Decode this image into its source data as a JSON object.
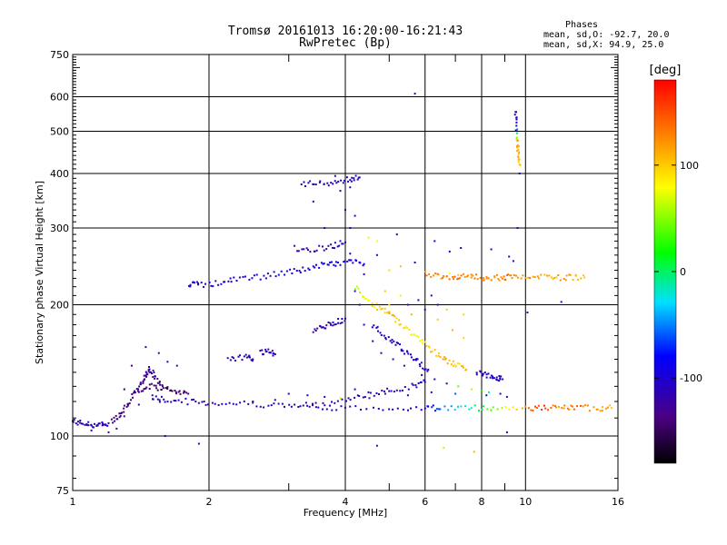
{
  "chart_data": {
    "type": "scatter",
    "title": "Tromsø 20161013 16:20:00-16:21:43",
    "subtitle": "RwPretec (Bp)",
    "xlabel": "Frequency [MHz]",
    "ylabel": "Stationary phase Virtual Height [km]",
    "x_scale": "log",
    "y_scale": "log",
    "xlim": [
      1,
      16
    ],
    "ylim": [
      75,
      750
    ],
    "x_ticks": [
      1,
      2,
      4,
      6,
      8,
      10,
      16
    ],
    "x_tick_labels": [
      "1",
      "2",
      "4",
      "6",
      "8",
      "10",
      "16"
    ],
    "x_minor_ticks": [
      3,
      5,
      7,
      9
    ],
    "y_ticks": [
      75,
      100,
      200,
      300,
      400,
      500,
      600,
      750
    ],
    "y_tick_labels": [
      "75",
      "100",
      "200",
      "300",
      "400",
      "500",
      "600",
      "750"
    ],
    "grid": true,
    "colorbar": {
      "label": "[deg]",
      "range": [
        -180,
        180
      ],
      "ticks": [
        100,
        0,
        -100
      ],
      "tick_labels": [
        "100",
        "0",
        "-100"
      ]
    },
    "phases": {
      "title": "Phases",
      "o_line": "mean, sd,O: -92.7, 20.0",
      "x_line": "mean, sd,X:  94.9, 25.0"
    },
    "traces": [
      {
        "points": [
          [
            1.0,
            108,
            -110
          ],
          [
            1.05,
            107,
            -115
          ],
          [
            1.1,
            106,
            -105
          ],
          [
            1.15,
            106,
            -110
          ],
          [
            1.2,
            107,
            -112
          ]
        ]
      },
      {
        "points": [
          [
            1.22,
            108,
            -130
          ],
          [
            1.27,
            112,
            -135
          ],
          [
            1.32,
            118,
            -132
          ],
          [
            1.37,
            125,
            -138
          ],
          [
            1.42,
            132,
            -130
          ],
          [
            1.45,
            138,
            -125
          ],
          [
            1.48,
            143,
            -120
          ],
          [
            1.52,
            136,
            -130
          ],
          [
            1.58,
            130,
            -135
          ]
        ]
      },
      {
        "points": [
          [
            1.5,
            122,
            -110
          ],
          [
            1.6,
            121,
            -108
          ],
          [
            1.8,
            120,
            -110
          ],
          [
            2.0,
            119,
            -112
          ],
          [
            2.3,
            119,
            -110
          ],
          [
            2.7,
            118,
            -108
          ],
          [
            3.1,
            117,
            -110
          ],
          [
            3.5,
            118,
            -112
          ],
          [
            4.0,
            121,
            -110
          ],
          [
            4.5,
            124,
            -115
          ],
          [
            5.0,
            127,
            -110
          ],
          [
            5.6,
            130,
            -105
          ],
          [
            6.0,
            133,
            -110
          ]
        ]
      },
      {
        "points": [
          [
            3.3,
            116,
            -112
          ],
          [
            4.0,
            116,
            -110
          ],
          [
            5.0,
            116,
            -108
          ],
          [
            6.0,
            116,
            -90
          ],
          [
            6.5,
            116,
            -60
          ],
          [
            7.5,
            116,
            -20
          ],
          [
            8.5,
            116,
            40
          ],
          [
            10,
            116,
            130
          ],
          [
            11,
            116,
            160
          ],
          [
            12,
            116,
            120
          ],
          [
            13,
            116,
            140
          ],
          [
            14.5,
            116,
            120
          ],
          [
            15.5,
            116,
            100
          ]
        ]
      },
      {
        "points": [
          [
            1.8,
            224,
            -100
          ],
          [
            1.9,
            222,
            -105
          ],
          [
            2.1,
            224,
            -100
          ],
          [
            2.3,
            229,
            -95
          ],
          [
            2.6,
            232,
            -100
          ],
          [
            2.9,
            236,
            -90
          ],
          [
            3.2,
            240,
            -100
          ],
          [
            3.5,
            246,
            -95
          ],
          [
            3.8,
            248,
            -90
          ],
          [
            4.1,
            252,
            -100
          ],
          [
            4.4,
            248,
            -80
          ]
        ]
      },
      {
        "points": [
          [
            3.1,
            270,
            -120
          ],
          [
            3.4,
            268,
            -115
          ],
          [
            3.7,
            272,
            -112
          ],
          [
            4.0,
            278,
            -108
          ]
        ]
      },
      {
        "points": [
          [
            3.2,
            380,
            -110
          ],
          [
            3.5,
            378,
            -112
          ],
          [
            3.8,
            382,
            -110
          ],
          [
            4.1,
            388,
            -108
          ],
          [
            4.3,
            392,
            -105
          ]
        ]
      },
      {
        "points": [
          [
            3.4,
            175,
            -118
          ],
          [
            3.6,
            178,
            -116
          ],
          [
            3.8,
            182,
            -114
          ],
          [
            4.0,
            186,
            -110
          ]
        ]
      },
      {
        "points": [
          [
            4.2,
            220,
            60
          ],
          [
            4.5,
            205,
            80
          ],
          [
            4.8,
            195,
            100
          ],
          [
            5.1,
            188,
            110
          ],
          [
            5.4,
            178,
            90
          ],
          [
            5.8,
            168,
            80
          ],
          [
            6.2,
            158,
            100
          ],
          [
            6.6,
            150,
            110
          ],
          [
            7.0,
            146,
            95
          ],
          [
            7.4,
            142,
            110
          ]
        ]
      },
      {
        "points": [
          [
            4.6,
            180,
            -100
          ],
          [
            4.9,
            170,
            -105
          ],
          [
            5.2,
            162,
            -110
          ],
          [
            5.5,
            155,
            -100
          ],
          [
            5.8,
            148,
            -105
          ],
          [
            6.1,
            142,
            -110
          ]
        ]
      },
      {
        "points": [
          [
            6.0,
            235,
            130
          ],
          [
            6.5,
            233,
            120
          ],
          [
            7.0,
            232,
            140
          ],
          [
            7.5,
            232,
            125
          ],
          [
            8.0,
            231,
            130
          ],
          [
            8.5,
            231,
            120
          ],
          [
            9.0,
            231,
            135
          ],
          [
            9.5,
            232,
            120
          ],
          [
            10.5,
            231,
            125
          ],
          [
            11.5,
            231,
            110
          ],
          [
            12.5,
            231,
            120
          ],
          [
            13.5,
            231,
            100
          ]
        ]
      },
      {
        "points": [
          [
            9.5,
            560,
            -110
          ],
          [
            9.55,
            510,
            -105
          ],
          [
            9.6,
            470,
            120
          ],
          [
            9.65,
            440,
            110
          ],
          [
            9.7,
            420,
            100
          ]
        ]
      },
      {
        "points": [
          [
            7.8,
            140,
            -110
          ],
          [
            8.2,
            138,
            -105
          ],
          [
            8.6,
            136,
            -100
          ],
          [
            8.9,
            135,
            -110
          ]
        ]
      },
      {
        "points": [
          [
            1.4,
            126,
            -140
          ],
          [
            1.5,
            130,
            -145
          ],
          [
            1.6,
            128,
            -150
          ],
          [
            1.7,
            126,
            -145
          ],
          [
            1.8,
            125,
            -140
          ]
        ]
      },
      {
        "points": [
          [
            2.6,
            155,
            -110
          ],
          [
            2.7,
            156,
            -112
          ],
          [
            2.8,
            154,
            -108
          ]
        ]
      },
      {
        "points": [
          [
            2.2,
            150,
            -112
          ],
          [
            2.4,
            152,
            -115
          ],
          [
            2.5,
            150,
            -110
          ]
        ]
      }
    ],
    "scatter": [
      [
        5.7,
        610,
        -110
      ],
      [
        6.3,
        280,
        -100
      ],
      [
        6.8,
        265,
        -95
      ],
      [
        7.2,
        270,
        -110
      ],
      [
        8.4,
        268,
        -100
      ],
      [
        9.2,
        258,
        -105
      ],
      [
        9.4,
        252,
        -95
      ],
      [
        4.1,
        300,
        -105
      ],
      [
        4.2,
        320,
        -100
      ],
      [
        4.0,
        330,
        -108
      ],
      [
        4.5,
        285,
        70
      ],
      [
        4.7,
        280,
        80
      ],
      [
        5.2,
        290,
        -110
      ],
      [
        1.6,
        100,
        -110
      ],
      [
        1.9,
        96,
        -105
      ],
      [
        4.7,
        95,
        -120
      ],
      [
        6.6,
        94,
        60
      ],
      [
        7.7,
        92,
        110
      ],
      [
        9.1,
        102,
        -100
      ],
      [
        10.1,
        192,
        -110
      ],
      [
        12.0,
        203,
        -100
      ],
      [
        9.7,
        400,
        -110
      ],
      [
        4.1,
        372,
        -105
      ],
      [
        3.9,
        365,
        -100
      ],
      [
        5.7,
        250,
        -110
      ],
      [
        6.2,
        210,
        -105
      ],
      [
        5.0,
        200,
        90
      ],
      [
        5.3,
        210,
        70
      ],
      [
        4.9,
        215,
        100
      ],
      [
        5.6,
        190,
        110
      ],
      [
        6.4,
        185,
        100
      ],
      [
        6.9,
        175,
        110
      ],
      [
        7.3,
        168,
        95
      ],
      [
        5.0,
        240,
        95
      ],
      [
        5.3,
        245,
        105
      ],
      [
        4.7,
        260,
        -110
      ],
      [
        4.4,
        235,
        -108
      ],
      [
        4.2,
        215,
        -112
      ],
      [
        4.3,
        200,
        -115
      ],
      [
        4.4,
        180,
        -110
      ],
      [
        4.6,
        165,
        -105
      ],
      [
        4.8,
        155,
        -108
      ],
      [
        5.1,
        150,
        -110
      ],
      [
        5.4,
        145,
        -112
      ],
      [
        5.9,
        138,
        -108
      ],
      [
        6.3,
        135,
        -110
      ],
      [
        6.7,
        132,
        -100
      ],
      [
        7.1,
        130,
        40
      ],
      [
        7.6,
        128,
        60
      ],
      [
        8.0,
        127,
        20
      ],
      [
        8.3,
        126,
        -20
      ],
      [
        4.2,
        128,
        -90
      ],
      [
        4.5,
        126,
        -95
      ],
      [
        4.9,
        125,
        -105
      ],
      [
        5.5,
        124,
        -100
      ],
      [
        6.2,
        126,
        -110
      ],
      [
        7.0,
        125,
        -60
      ],
      [
        3.8,
        395,
        -110
      ],
      [
        3.4,
        345,
        -112
      ],
      [
        3.6,
        300,
        -108
      ],
      [
        3.9,
        280,
        -110
      ],
      [
        4.1,
        262,
        -105
      ],
      [
        3.7,
        250,
        -112
      ],
      [
        1.7,
        145,
        -135
      ],
      [
        1.55,
        155,
        -140
      ],
      [
        1.45,
        160,
        -130
      ],
      [
        1.35,
        145,
        -140
      ],
      [
        1.3,
        128,
        -150
      ],
      [
        1.62,
        148,
        -120
      ],
      [
        1.2,
        102,
        -120
      ],
      [
        1.25,
        104,
        -125
      ],
      [
        1.1,
        103,
        -110
      ],
      [
        1.3,
        111,
        -130
      ],
      [
        1.4,
        118,
        -128
      ],
      [
        1.5,
        124,
        -120
      ],
      [
        3.0,
        125,
        -110
      ],
      [
        3.3,
        124,
        -108
      ],
      [
        3.6,
        123,
        -110
      ],
      [
        2.8,
        121,
        -112
      ],
      [
        2.5,
        120,
        -110
      ],
      [
        3.9,
        122,
        60
      ],
      [
        8.8,
        125,
        -105
      ],
      [
        8.2,
        124,
        -100
      ],
      [
        9.1,
        123,
        -110
      ],
      [
        6.8,
        236,
        80
      ],
      [
        7.1,
        234,
        100
      ],
      [
        9.6,
        300,
        -110
      ],
      [
        5.5,
        200,
        -110
      ],
      [
        5.8,
        205,
        -105
      ],
      [
        6.0,
        195,
        -100
      ],
      [
        6.4,
        200,
        -110
      ],
      [
        6.7,
        195,
        100
      ],
      [
        7.3,
        190,
        95
      ]
    ]
  }
}
